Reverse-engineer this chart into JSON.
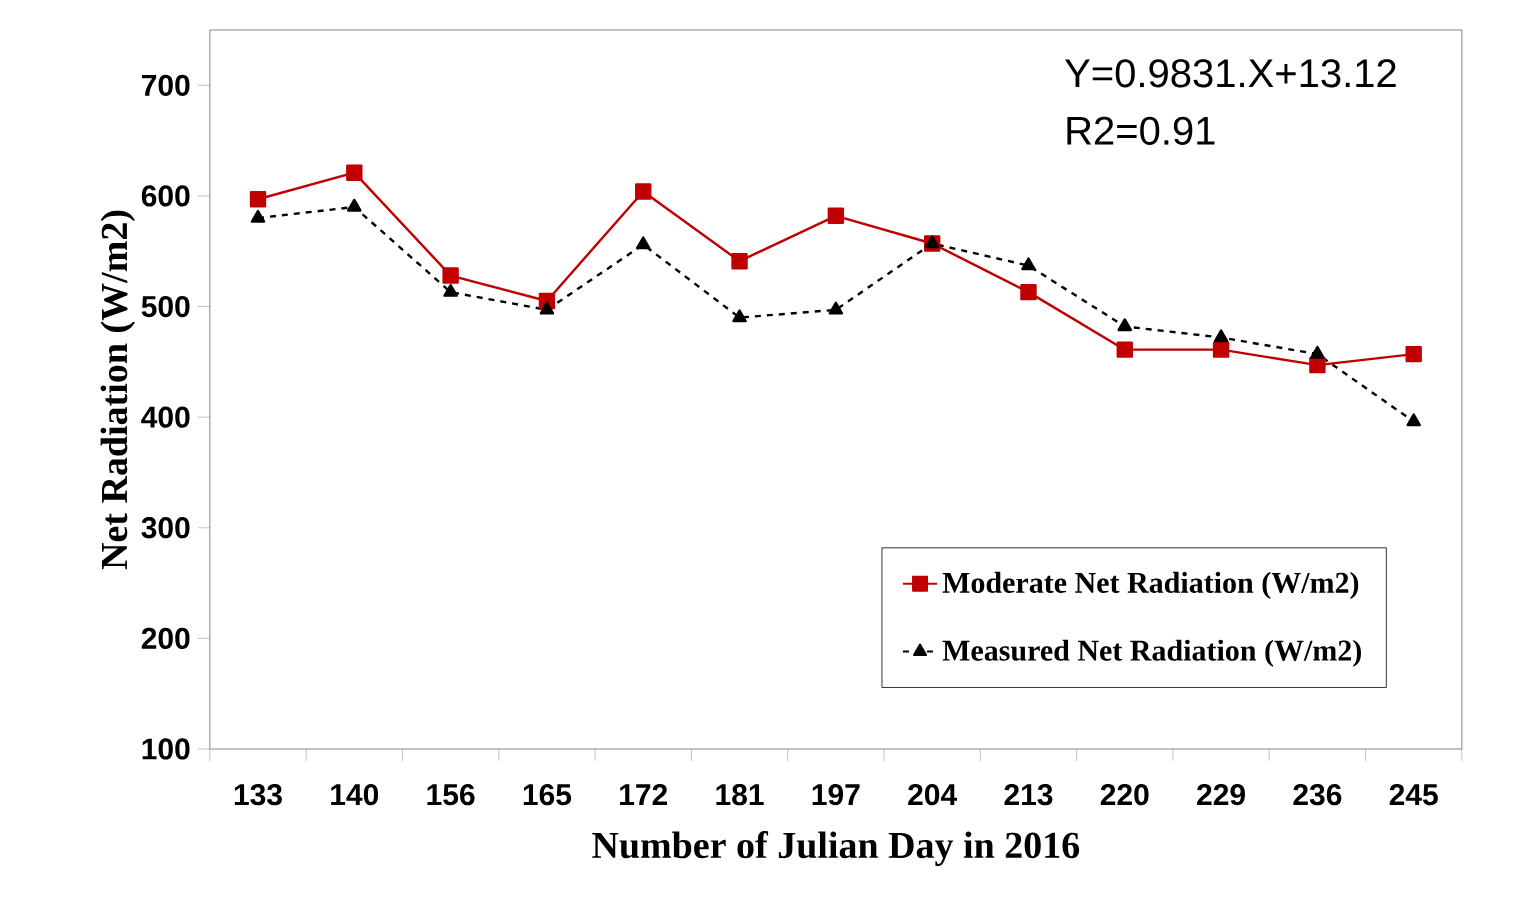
{
  "chart_data": {
    "type": "line",
    "xlabel": "Number of Julian Day in 2016",
    "ylabel": "Net Radiation (W/m2)",
    "categories": [
      "133",
      "140",
      "156",
      "165",
      "172",
      "181",
      "197",
      "204",
      "213",
      "220",
      "229",
      "236",
      "245"
    ],
    "series": [
      {
        "name": "Moderate Net Radiation (W/m2)",
        "color": "#c00000",
        "marker": "square",
        "line_style": "solid",
        "values": [
          597,
          621,
          528,
          505,
          604,
          541,
          582,
          557,
          513,
          461,
          461,
          447,
          457
        ]
      },
      {
        "name": "Measured Net Radiation (W/m2)",
        "color": "#000000",
        "marker": "triangle",
        "line_style": "dashed",
        "values": [
          580,
          590,
          513,
          497,
          556,
          490,
          497,
          557,
          537,
          482,
          472,
          457,
          396
        ]
      }
    ],
    "ylim": [
      100,
      750
    ],
    "yticks": [
      100,
      200,
      300,
      400,
      500,
      600,
      700
    ],
    "grid": false,
    "legend": "bottom right",
    "annotations": [
      "Y=0.9831.X+13.12",
      "R2=0.91"
    ]
  }
}
